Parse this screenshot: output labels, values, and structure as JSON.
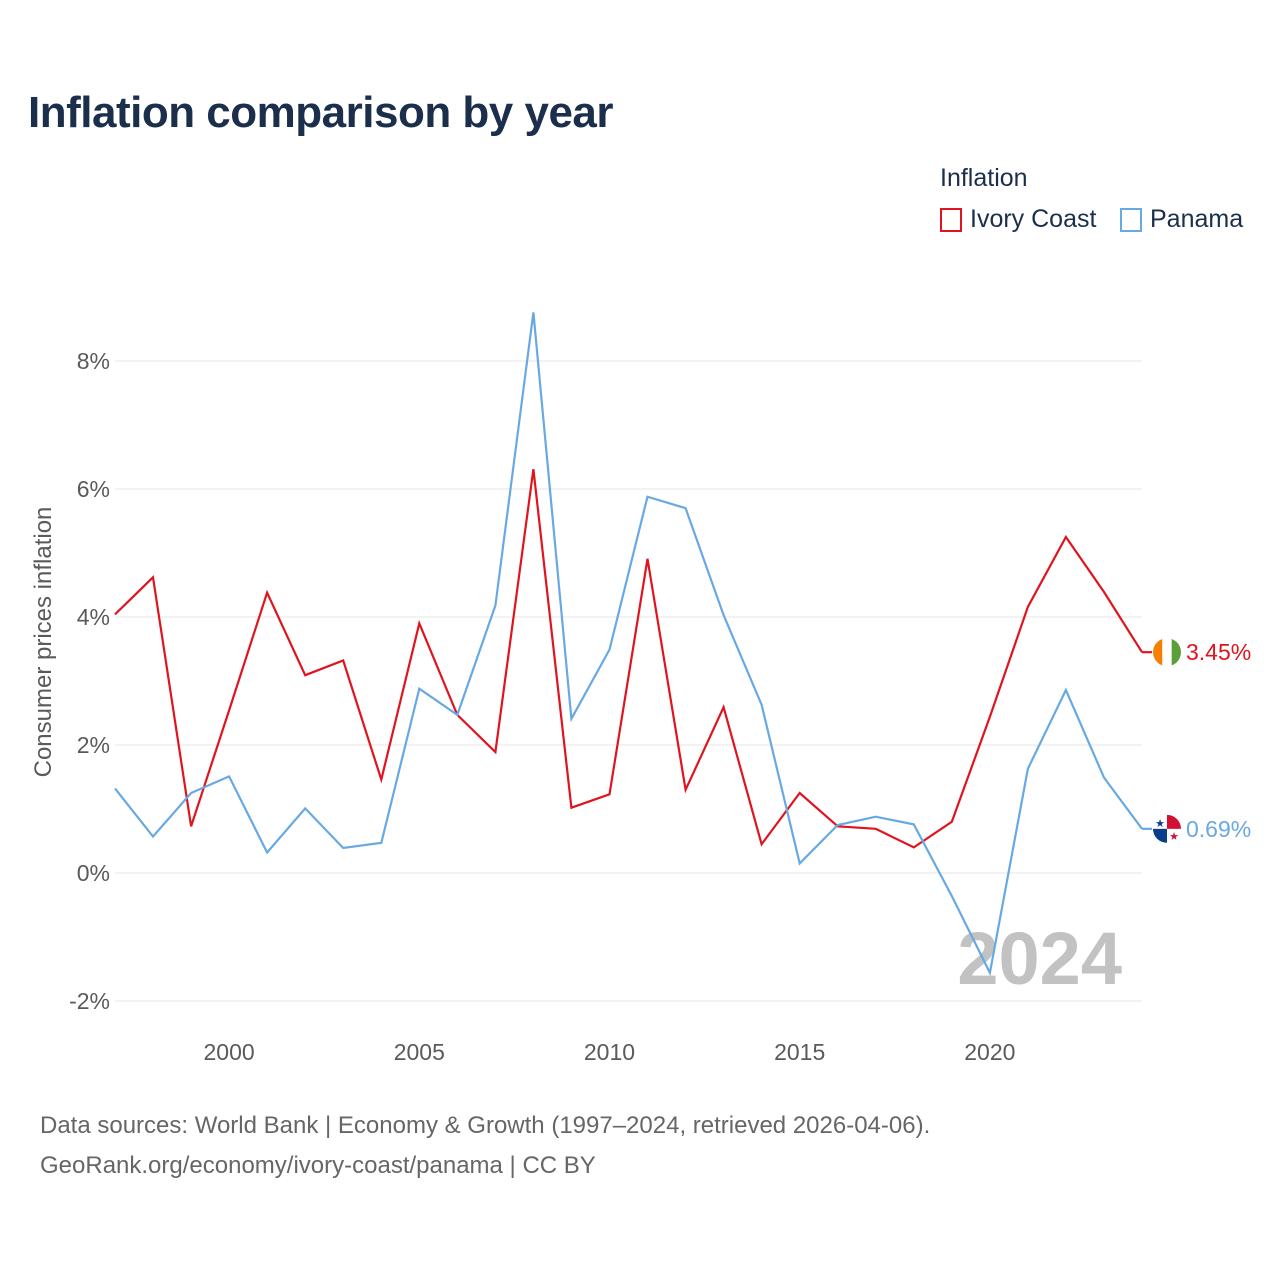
{
  "title": "Inflation comparison by year",
  "legend": {
    "title": "Inflation",
    "items": [
      {
        "label": "Ivory Coast",
        "color": "#e0141e"
      },
      {
        "label": "Panama",
        "color": "#68a9e3"
      }
    ]
  },
  "footer": {
    "line1": "Data sources: World Bank | Economy & Growth (1997–2024, retrieved 2026-04-06).",
    "line2": "GeoRank.org/economy/ivory-coast/panama | CC BY"
  },
  "chart_data": {
    "type": "line",
    "title": "Inflation comparison by year",
    "xlabel": "",
    "ylabel": "Consumer prices inflation",
    "x": [
      1997,
      1998,
      1999,
      2000,
      2001,
      2002,
      2003,
      2004,
      2005,
      2006,
      2007,
      2008,
      2009,
      2010,
      2011,
      2012,
      2013,
      2014,
      2015,
      2016,
      2017,
      2018,
      2019,
      2020,
      2021,
      2022,
      2023,
      2024
    ],
    "xlim": [
      1997,
      2024
    ],
    "ylim": [
      -2,
      8.8
    ],
    "yticks": [
      -2,
      0,
      2,
      4,
      6,
      8
    ],
    "ytick_labels": [
      "-2%",
      "0%",
      "2%",
      "4%",
      "6%",
      "8%"
    ],
    "xticks": [
      2000,
      2005,
      2010,
      2015,
      2020
    ],
    "xtick_labels": [
      "2000",
      "2005",
      "2010",
      "2015",
      "2020"
    ],
    "grid": true,
    "watermark": "2024",
    "series": [
      {
        "name": "Ivory Coast",
        "color": "#e0141e",
        "end_label": "3.45%",
        "flag": "ivory-coast-flag-icon",
        "values": [
          4.04,
          4.62,
          0.73,
          2.54,
          4.38,
          3.09,
          3.32,
          1.46,
          3.9,
          2.47,
          1.89,
          6.31,
          1.02,
          1.23,
          4.91,
          1.3,
          2.59,
          0.45,
          1.25,
          0.73,
          0.69,
          0.4,
          0.8,
          2.44,
          4.16,
          5.25,
          4.39,
          3.45
        ]
      },
      {
        "name": "Panama",
        "color": "#68a9e3",
        "end_label": "0.69%",
        "flag": "panama-flag-icon",
        "values": [
          1.32,
          0.57,
          1.25,
          1.51,
          0.32,
          1.01,
          0.39,
          0.47,
          2.88,
          2.47,
          4.18,
          8.76,
          2.41,
          3.49,
          5.88,
          5.7,
          4.03,
          2.63,
          0.15,
          0.75,
          0.88,
          0.76,
          -0.36,
          -1.56,
          1.63,
          2.86,
          1.49,
          0.69
        ]
      }
    ]
  }
}
